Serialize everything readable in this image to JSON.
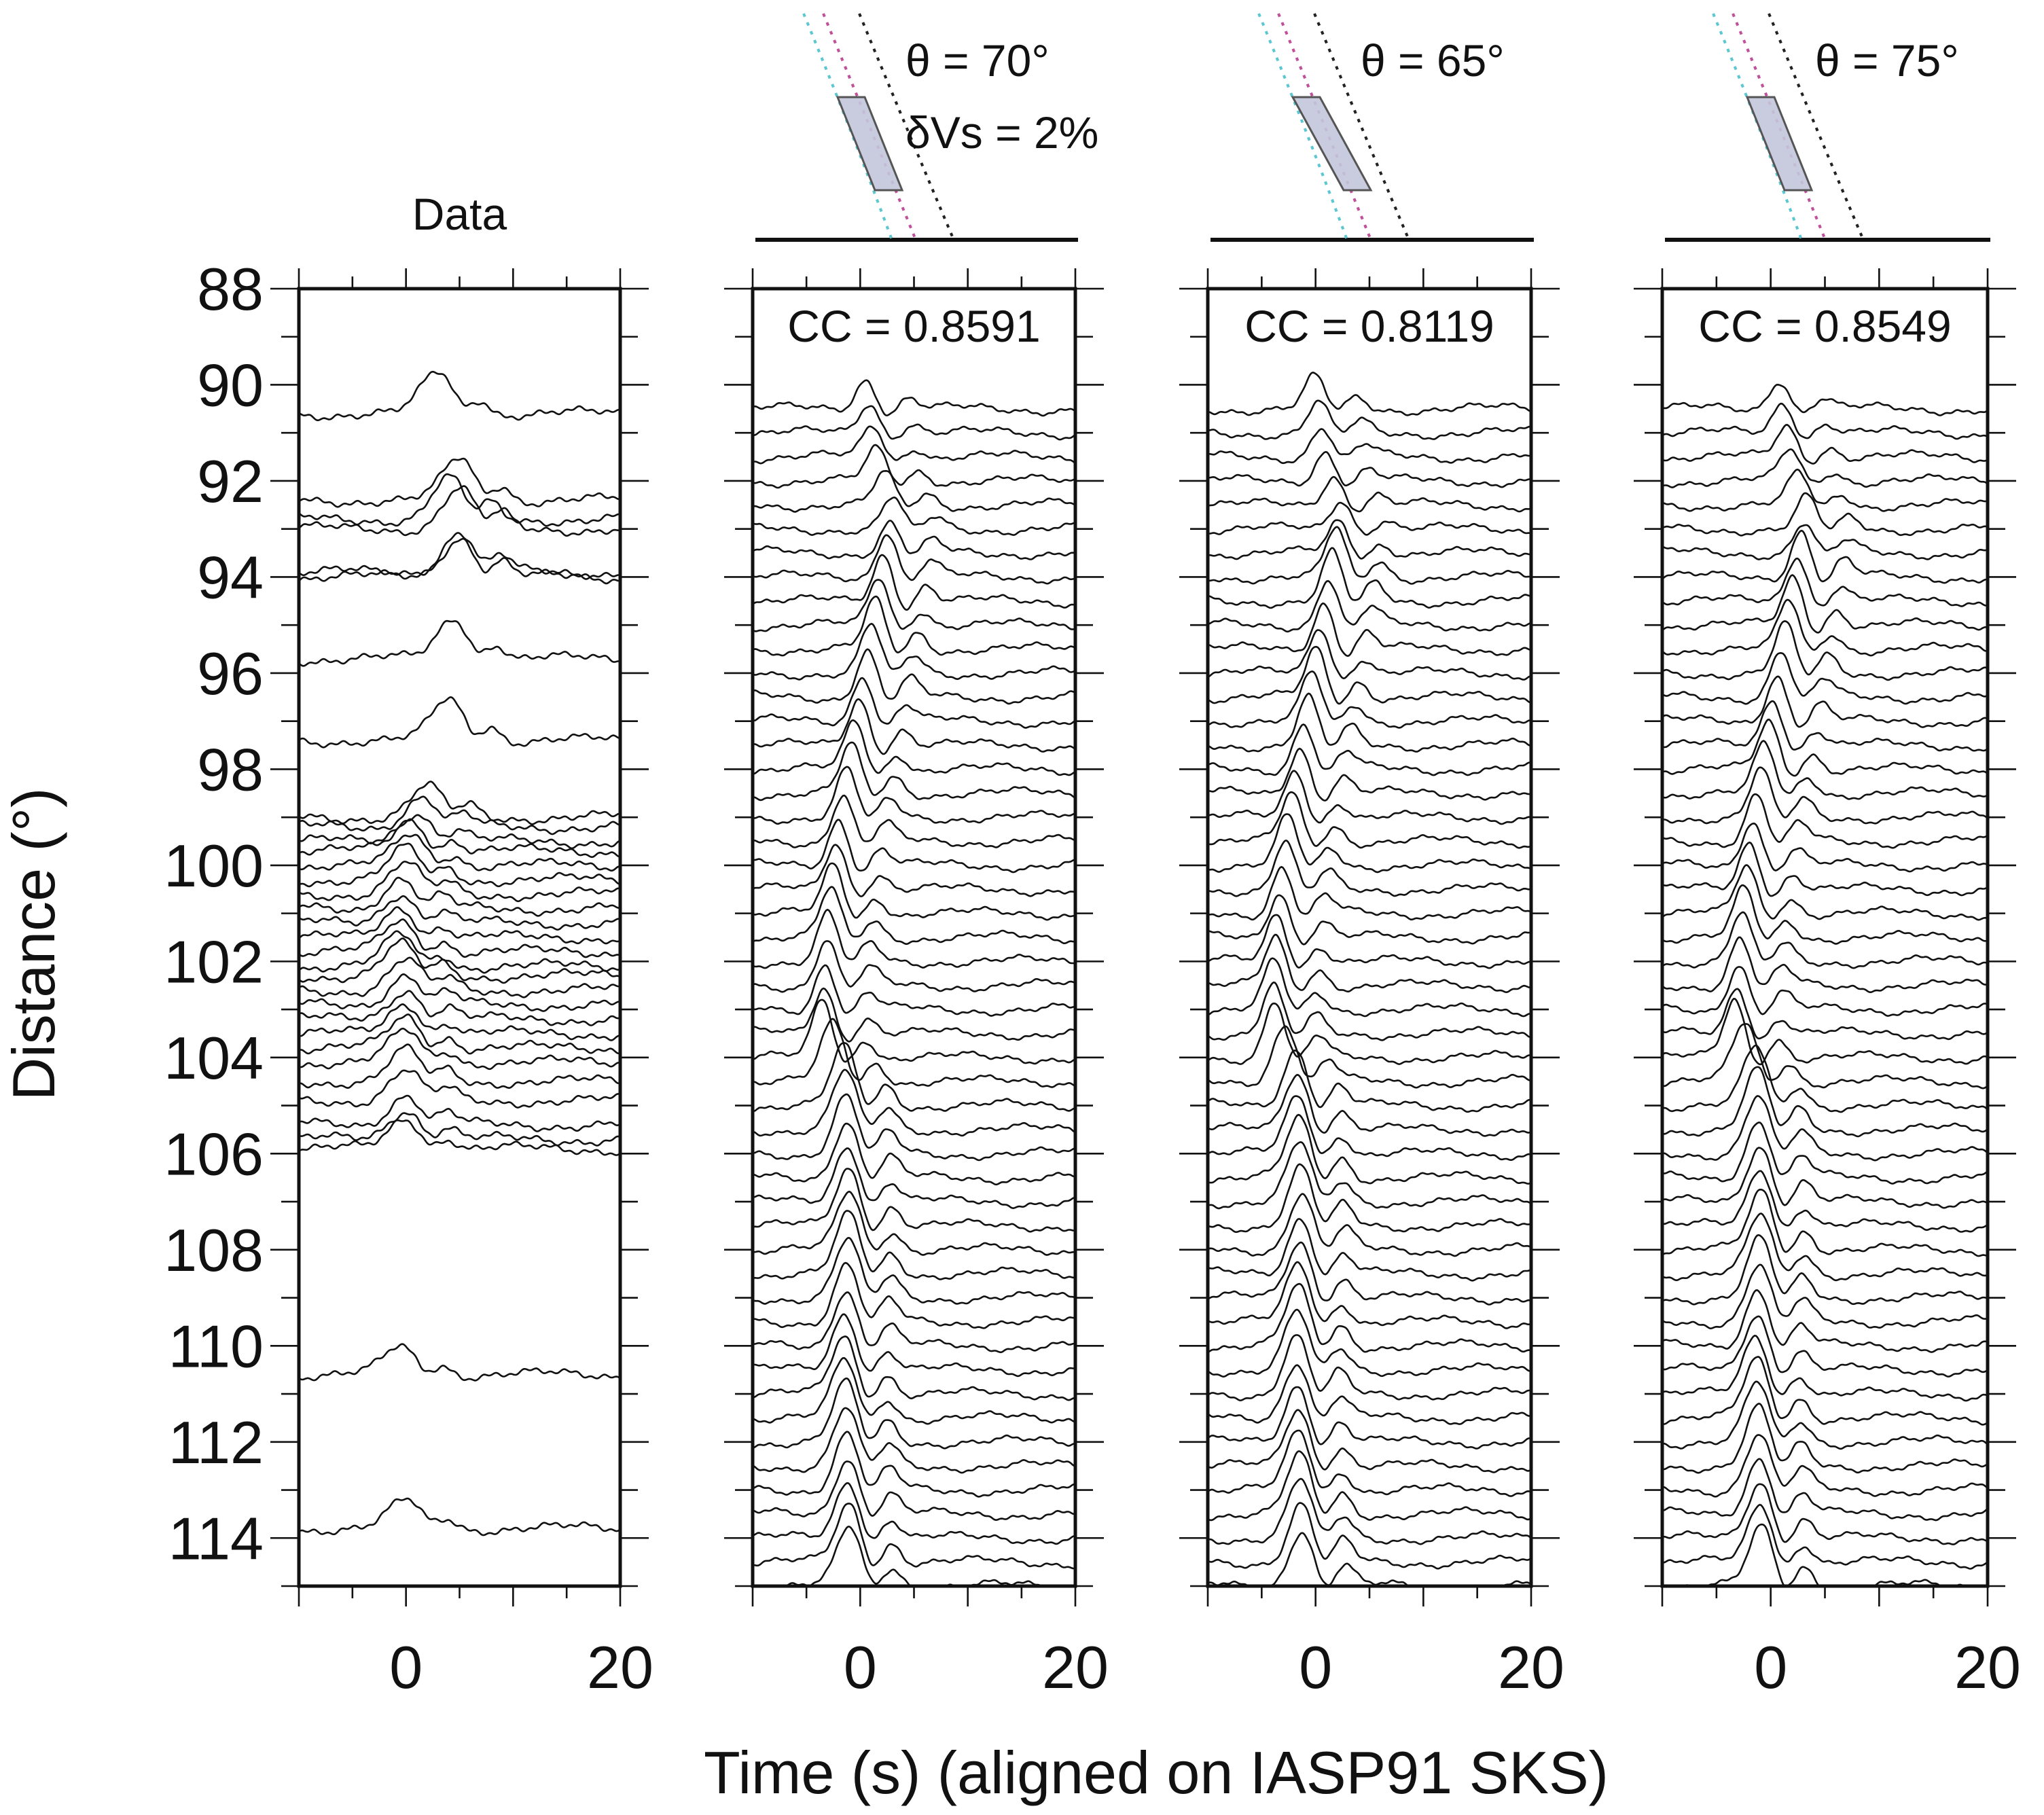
{
  "chart_data": {
    "type": "line",
    "subtype": "seismic-record-section",
    "xlabel": "Time (s) (aligned on IASP91 SKS)",
    "ylabel": "Distance (°)",
    "xlim": [
      -10,
      20
    ],
    "ylim": [
      115,
      88
    ],
    "x_tick_labels": [
      "0",
      "20"
    ],
    "y_tick_labels": [
      "88",
      "90",
      "92",
      "94",
      "96",
      "98",
      "100",
      "102",
      "104",
      "106",
      "108",
      "110",
      "112",
      "114"
    ],
    "panels": [
      {
        "title": "Data",
        "traces": [
          {
            "distance": 90.6,
            "peak_time": 3
          },
          {
            "distance": 92.4,
            "peak_time": 5
          },
          {
            "distance": 92.8,
            "peak_time": 4
          },
          {
            "distance": 93.0,
            "peak_time": 5
          },
          {
            "distance": 93.9,
            "peak_time": 5
          },
          {
            "distance": 94.0,
            "peak_time": 5
          },
          {
            "distance": 95.7,
            "peak_time": 4.5
          },
          {
            "distance": 97.4,
            "peak_time": 4
          },
          {
            "distance": 99.0,
            "peak_time": 2
          },
          {
            "distance": 99.2,
            "peak_time": 1.5
          },
          {
            "distance": 99.5,
            "peak_time": 1
          },
          {
            "distance": 99.7,
            "peak_time": 0.5
          },
          {
            "distance": 100.0,
            "peak_time": 0.5
          },
          {
            "distance": 100.3,
            "peak_time": 0
          },
          {
            "distance": 100.6,
            "peak_time": 0
          },
          {
            "distance": 100.9,
            "peak_time": -0.5
          },
          {
            "distance": 101.2,
            "peak_time": -0.5
          },
          {
            "distance": 101.5,
            "peak_time": -0.5
          },
          {
            "distance": 101.8,
            "peak_time": -0.5
          },
          {
            "distance": 102.1,
            "peak_time": -0.5
          },
          {
            "distance": 102.3,
            "peak_time": -0.5
          },
          {
            "distance": 102.6,
            "peak_time": 0
          },
          {
            "distance": 102.9,
            "peak_time": 0
          },
          {
            "distance": 103.2,
            "peak_time": 0
          },
          {
            "distance": 103.5,
            "peak_time": 0
          },
          {
            "distance": 103.8,
            "peak_time": 0
          },
          {
            "distance": 104.1,
            "peak_time": 0
          },
          {
            "distance": 104.5,
            "peak_time": 0
          },
          {
            "distance": 104.9,
            "peak_time": 0
          },
          {
            "distance": 105.4,
            "peak_time": 0
          },
          {
            "distance": 105.7,
            "peak_time": 0
          },
          {
            "distance": 105.9,
            "peak_time": 0
          },
          {
            "distance": 110.6,
            "peak_time": -0.5
          },
          {
            "distance": 113.8,
            "peak_time": 0
          }
        ]
      },
      {
        "title": "θ = 70°",
        "subtitle": "δVs = 2%",
        "cc_label": "CC = 0.8591",
        "theta": 70,
        "dvs_percent": 2,
        "cc": 0.8591
      },
      {
        "title": "θ = 65°",
        "cc_label": "CC = 0.8119",
        "theta": 65,
        "cc": 0.8119
      },
      {
        "title": "θ = 75°",
        "cc_label": "CC = 0.8549",
        "theta": 75,
        "cc": 0.8549
      }
    ],
    "synthetic_distance_range": [
      90.5,
      115
    ],
    "synthetic_spacing_deg": 0.5,
    "synthetic_peak_time_vs_distance": [
      [
        90.5,
        0.5
      ],
      [
        92,
        1.5
      ],
      [
        93,
        3
      ],
      [
        94,
        2.5
      ],
      [
        96,
        1
      ],
      [
        98,
        -0.5
      ],
      [
        100,
        -2
      ],
      [
        102,
        -3
      ],
      [
        104,
        -3.5
      ],
      [
        105,
        -1.5
      ],
      [
        108,
        -1
      ],
      [
        111,
        -1.5
      ],
      [
        115,
        -1
      ]
    ],
    "model_colors": {
      "fill": "#c3c6dc",
      "outline": "#555555",
      "cyan": "#5cc7d0",
      "magenta": "#c0509a",
      "black": "#222222"
    }
  }
}
